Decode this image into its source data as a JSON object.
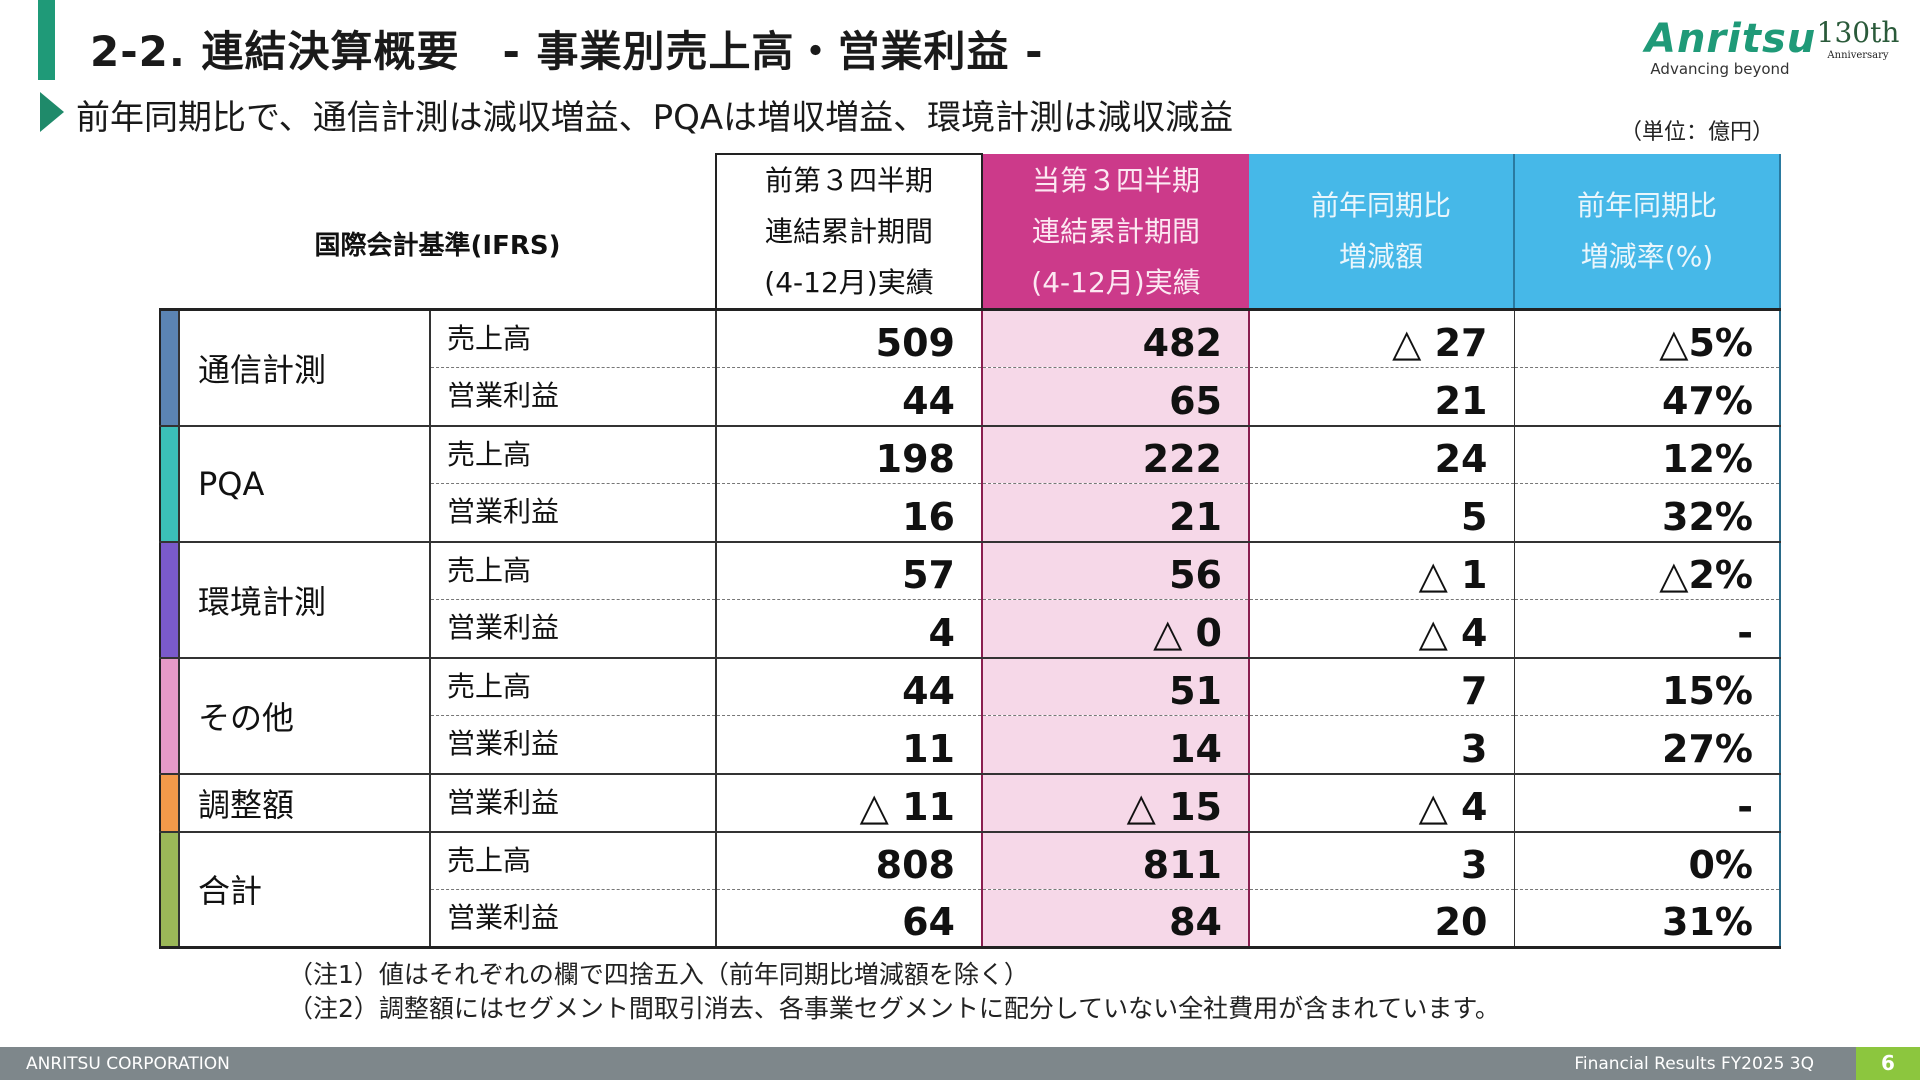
{
  "header": {
    "title": "2-2. 連結決算概要　- 事業別売上高・営業利益 -",
    "subtitle": "前年同期比で、通信計測は減収増益、PQAは増収増益、環境計測は減収減益",
    "logo_text": "Anritsu",
    "logo_tagline": "Advancing beyond",
    "anniversary": "130th Anniversary",
    "unit": "（単位：億円）"
  },
  "colors": {
    "accent": "#1f9a78",
    "current_header": "#cc3a8a",
    "current_fill": "#f6d8e8",
    "compare_header": "#46b8e8",
    "footer": "#7e878b",
    "page_badge": "#8cc63e"
  },
  "table": {
    "label": "国際会計基準(IFRS)",
    "columns": [
      "前第３四半期\n連結累計期間\n(4-12月)実績",
      "当第３四半期\n連結累計期間\n(4-12月)実績",
      "前年同期比\n増減額",
      "前年同期比\n増減率(%)"
    ],
    "segments": [
      {
        "name": "通信計測",
        "color": "#5b84b3",
        "rows": [
          {
            "item": "売上高",
            "prev": "509",
            "cur": "482",
            "diff": "△ 27",
            "rate": "△5%"
          },
          {
            "item": "営業利益",
            "prev": "44",
            "cur": "65",
            "diff": "21",
            "rate": "47%"
          }
        ]
      },
      {
        "name": "PQA",
        "color": "#3bbfb8",
        "rows": [
          {
            "item": "売上高",
            "prev": "198",
            "cur": "222",
            "diff": "24",
            "rate": "12%"
          },
          {
            "item": "営業利益",
            "prev": "16",
            "cur": "21",
            "diff": "5",
            "rate": "32%"
          }
        ]
      },
      {
        "name": "環境計測",
        "color": "#7a5acb",
        "rows": [
          {
            "item": "売上高",
            "prev": "57",
            "cur": "56",
            "diff": "△ 1",
            "rate": "△2%"
          },
          {
            "item": "営業利益",
            "prev": "4",
            "cur": "△ 0",
            "diff": "△ 4",
            "rate": "-"
          }
        ]
      },
      {
        "name": "その他",
        "color": "#e59ac8",
        "rows": [
          {
            "item": "売上高",
            "prev": "44",
            "cur": "51",
            "diff": "7",
            "rate": "15%"
          },
          {
            "item": "営業利益",
            "prev": "11",
            "cur": "14",
            "diff": "3",
            "rate": "27%"
          }
        ]
      },
      {
        "name": "調整額",
        "color": "#f39a4a",
        "rows": [
          {
            "item": "営業利益",
            "prev": "△ 11",
            "cur": "△ 15",
            "diff": "△ 4",
            "rate": "-"
          }
        ]
      },
      {
        "name": "合計",
        "color": "#9bb858",
        "rows": [
          {
            "item": "売上高",
            "prev": "808",
            "cur": "811",
            "diff": "3",
            "rate": "0%"
          },
          {
            "item": "営業利益",
            "prev": "64",
            "cur": "84",
            "diff": "20",
            "rate": "31%"
          }
        ]
      }
    ]
  },
  "notes": [
    "（注1）値はそれぞれの欄で四捨五入（前年同期比増減額を除く）",
    "（注2）調整額にはセグメント間取引消去、各事業セグメントに配分していない全社費用が含まれています。"
  ],
  "footer": {
    "company": "ANRITSU CORPORATION",
    "doc": "Financial Results FY2025 3Q",
    "page": "6"
  }
}
